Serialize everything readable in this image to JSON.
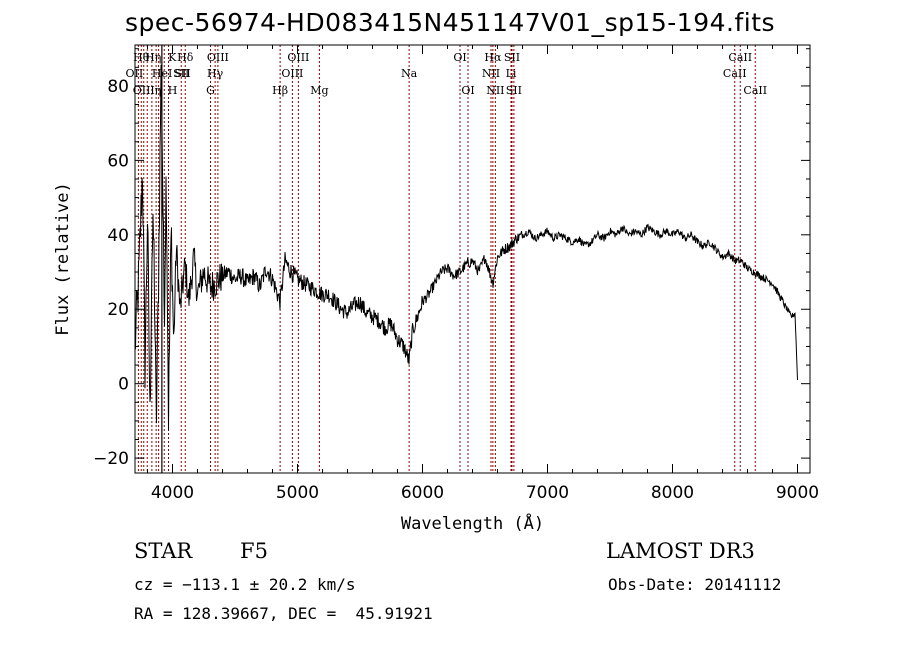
{
  "chart_data": {
    "type": "line",
    "title": "spec-56974-HD083415N451147V01_sp15-194.fits",
    "xlabel": "Wavelength (Å)",
    "ylabel": "Flux (relative)",
    "xlim": [
      3700,
      9100
    ],
    "ylim": [
      -24,
      91
    ],
    "xticks": [
      4000,
      5000,
      6000,
      7000,
      8000,
      9000
    ],
    "yticks": [
      -20,
      0,
      20,
      40,
      60,
      80
    ],
    "series": [
      {
        "name": "spectrum",
        "x": [
          3700,
          3730,
          3760,
          3780,
          3800,
          3820,
          3835,
          3850,
          3870,
          3889,
          3910,
          3934,
          3950,
          3968,
          3990,
          4010,
          4030,
          4060,
          4101,
          4130,
          4170,
          4200,
          4250,
          4300,
          4340,
          4400,
          4450,
          4500,
          4550,
          4600,
          4650,
          4700,
          4750,
          4800,
          4861,
          4900,
          4950,
          5000,
          5050,
          5100,
          5150,
          5200,
          5250,
          5300,
          5350,
          5400,
          5450,
          5500,
          5550,
          5600,
          5650,
          5700,
          5750,
          5800,
          5850,
          5893,
          5920,
          5950,
          6000,
          6050,
          6100,
          6150,
          6200,
          6250,
          6300,
          6350,
          6400,
          6450,
          6500,
          6563,
          6600,
          6650,
          6700,
          6750,
          6800,
          6850,
          6900,
          6950,
          7000,
          7050,
          7100,
          7150,
          7200,
          7250,
          7300,
          7350,
          7400,
          7450,
          7500,
          7550,
          7600,
          7650,
          7700,
          7750,
          7800,
          7850,
          7900,
          7950,
          8000,
          8050,
          8100,
          8150,
          8200,
          8250,
          8300,
          8350,
          8400,
          8450,
          8500,
          8550,
          8600,
          8650,
          8700,
          8750,
          8800,
          8850,
          8900,
          8950,
          8980,
          9000
        ],
        "values": [
          10,
          28,
          58,
          5,
          45,
          -10,
          35,
          40,
          -12,
          30,
          88,
          18,
          58,
          -8,
          42,
          10,
          37,
          20,
          32,
          22,
          34,
          24,
          30,
          26,
          27,
          29,
          30,
          28,
          29,
          27,
          29,
          26,
          31,
          28,
          22,
          33,
          30,
          28,
          27,
          26,
          25,
          24,
          24,
          22,
          20,
          19,
          21,
          22,
          19,
          18,
          17,
          15,
          16,
          12,
          10,
          6,
          14,
          17,
          22,
          24,
          27,
          30,
          31,
          29,
          30,
          32,
          33,
          30,
          34,
          27,
          34,
          36,
          37,
          39,
          40,
          41,
          39,
          40,
          41,
          39,
          40,
          39,
          38,
          39,
          37,
          38,
          40,
          39,
          41,
          40,
          42,
          40,
          41,
          40,
          42,
          41,
          40,
          41,
          40,
          41,
          39,
          40,
          38,
          37,
          38,
          36,
          34,
          35,
          33,
          33,
          31,
          30,
          29,
          28,
          27,
          24,
          21,
          18,
          19,
          1
        ]
      }
    ],
    "line_groups": [
      {
        "color": "#8b0000",
        "lines": [
          {
            "wl": 3727,
            "label": "OII",
            "row": 1,
            "dx": -4
          },
          {
            "wl": 3750,
            "label": "Hθ",
            "row": 0,
            "dx": 0
          },
          {
            "wl": 3770,
            "label": "OIII",
            "row": 2,
            "dx": 0
          },
          {
            "wl": 3798,
            "label": "Hη",
            "row": 0,
            "dx": 6
          },
          {
            "wl": 3835,
            "label": "η",
            "row": 2,
            "dx": 6
          },
          {
            "wl": 3869,
            "label": "HeI",
            "row": 1,
            "dx": 6
          },
          {
            "wl": 3889,
            "label": "SII",
            "row": 1,
            "dx": 24
          },
          {
            "wl": 3934,
            "label": "K",
            "row": 0,
            "dx": 8
          },
          {
            "wl": 3968,
            "label": "H",
            "row": 2,
            "dx": 4
          },
          {
            "wl": 4102,
            "label": "Hδ",
            "row": 0,
            "dx": 0
          },
          {
            "wl": 4070,
            "label": "SII",
            "row": 1,
            "dx": 0
          },
          {
            "wl": 4304,
            "label": "G",
            "row": 2,
            "dx": 0
          },
          {
            "wl": 4341,
            "label": "Hγ",
            "row": 1,
            "dx": 0
          },
          {
            "wl": 4363,
            "label": "OIII",
            "row": 0,
            "dx": 0
          },
          {
            "wl": 4861,
            "label": "Hβ",
            "row": 2,
            "dx": 0
          },
          {
            "wl": 4959,
            "label": "OIII",
            "row": 1,
            "dx": 0
          },
          {
            "wl": 5007,
            "label": "OIII",
            "row": 0,
            "dx": 0
          },
          {
            "wl": 5175,
            "label": "Mg",
            "row": 2,
            "dx": 0
          },
          {
            "wl": 5893,
            "label": "Na",
            "row": 1,
            "dx": 0
          },
          {
            "wl": 6300,
            "label": "OI",
            "row": 0,
            "dx": 0
          },
          {
            "wl": 6364,
            "label": "OI",
            "row": 2,
            "dx": 0
          },
          {
            "wl": 6548,
            "label": "NII",
            "row": 1,
            "dx": 0
          },
          {
            "wl": 6563,
            "label": "Hα",
            "row": 0,
            "dx": 0
          },
          {
            "wl": 6583,
            "label": "NII",
            "row": 2,
            "dx": 0
          },
          {
            "wl": 6708,
            "label": "Li",
            "row": 1,
            "dx": 0
          },
          {
            "wl": 6716,
            "label": "SII",
            "row": 0,
            "dx": 0
          },
          {
            "wl": 6731,
            "label": "SII",
            "row": 2,
            "dx": 0
          },
          {
            "wl": 8498,
            "label": "CaII",
            "row": 1,
            "dx": 0
          },
          {
            "wl": 8542,
            "label": "CaII",
            "row": 0,
            "dx": 0
          },
          {
            "wl": 8662,
            "label": "CaII",
            "row": 2,
            "dx": 0
          }
        ]
      }
    ]
  },
  "info": {
    "object_class": "STAR",
    "subclass": "F5",
    "release": "LAMOST DR3",
    "cz": "cz = −113.1 ± 20.2 km/s",
    "obs_date": "Obs-Date: 20141112",
    "coords": "RA = 128.39667, DEC =  45.91921"
  }
}
